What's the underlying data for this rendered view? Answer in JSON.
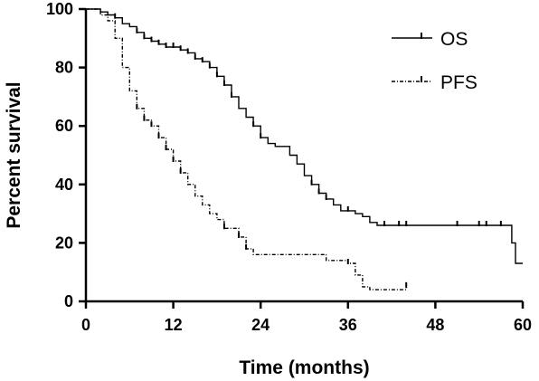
{
  "chart_data": {
    "type": "line",
    "xlabel": "Time (months)",
    "ylabel": "Percent survival",
    "xlim": [
      0,
      60
    ],
    "ylim": [
      0,
      100
    ],
    "xticks": [
      0,
      12,
      24,
      36,
      48,
      60
    ],
    "yticks": [
      0,
      20,
      40,
      60,
      80,
      100
    ],
    "grid": false,
    "legend_position": "top-right",
    "series": [
      {
        "name": "OS",
        "step": true,
        "line_style": "solid",
        "color": "#000000",
        "points": [
          [
            0,
            100
          ],
          [
            1,
            100
          ],
          [
            2,
            99
          ],
          [
            3,
            98
          ],
          [
            4,
            97
          ],
          [
            5,
            95
          ],
          [
            6,
            94
          ],
          [
            7,
            92
          ],
          [
            8,
            90
          ],
          [
            9,
            89
          ],
          [
            10,
            88
          ],
          [
            11,
            87
          ],
          [
            12,
            87
          ],
          [
            13,
            86
          ],
          [
            14,
            85
          ],
          [
            15,
            83
          ],
          [
            16,
            82
          ],
          [
            17,
            80
          ],
          [
            18,
            77
          ],
          [
            19,
            74
          ],
          [
            20,
            70
          ],
          [
            21,
            66
          ],
          [
            22,
            63
          ],
          [
            23,
            60
          ],
          [
            24,
            56
          ],
          [
            25,
            54
          ],
          [
            26,
            53
          ],
          [
            27,
            53
          ],
          [
            28,
            50
          ],
          [
            29,
            47
          ],
          [
            30,
            43
          ],
          [
            31,
            40
          ],
          [
            32,
            37
          ],
          [
            33,
            35
          ],
          [
            34,
            33
          ],
          [
            35,
            31
          ],
          [
            36,
            31
          ],
          [
            37,
            30
          ],
          [
            38,
            29
          ],
          [
            39,
            27
          ],
          [
            40,
            26
          ],
          [
            58,
            26
          ],
          [
            58.5,
            20
          ],
          [
            59,
            13
          ],
          [
            60,
            13
          ]
        ],
        "censor_marks": [
          [
            4,
            97
          ],
          [
            7,
            92
          ],
          [
            8,
            90
          ],
          [
            9,
            89
          ],
          [
            10,
            88
          ],
          [
            11,
            87
          ],
          [
            12,
            87
          ],
          [
            13,
            86
          ],
          [
            14,
            85
          ],
          [
            15,
            83
          ],
          [
            16,
            82
          ],
          [
            17,
            80
          ],
          [
            18,
            77
          ],
          [
            19,
            74
          ],
          [
            20,
            70
          ],
          [
            23,
            60
          ],
          [
            24,
            56
          ],
          [
            31,
            40
          ],
          [
            32,
            37
          ],
          [
            33,
            35
          ],
          [
            36,
            31
          ],
          [
            41,
            26
          ],
          [
            43,
            26
          ],
          [
            44,
            26
          ],
          [
            51,
            26
          ],
          [
            54,
            26
          ],
          [
            55,
            26
          ],
          [
            57,
            26
          ]
        ]
      },
      {
        "name": "PFS",
        "step": true,
        "line_style": "dash-dot",
        "color": "#000000",
        "points": [
          [
            0,
            100
          ],
          [
            1,
            100
          ],
          [
            2,
            98
          ],
          [
            3,
            96
          ],
          [
            4,
            90
          ],
          [
            5,
            80
          ],
          [
            6,
            72
          ],
          [
            7,
            66
          ],
          [
            8,
            62
          ],
          [
            9,
            60
          ],
          [
            10,
            56
          ],
          [
            11,
            52
          ],
          [
            12,
            48
          ],
          [
            13,
            44
          ],
          [
            14,
            40
          ],
          [
            15,
            36
          ],
          [
            16,
            33
          ],
          [
            17,
            30
          ],
          [
            18,
            28
          ],
          [
            19,
            25
          ],
          [
            20,
            25
          ],
          [
            21,
            22
          ],
          [
            22,
            18
          ],
          [
            23,
            16
          ],
          [
            27,
            16
          ],
          [
            32,
            16
          ],
          [
            33,
            14
          ],
          [
            36,
            13
          ],
          [
            37,
            9
          ],
          [
            38,
            5
          ],
          [
            39,
            4
          ],
          [
            43,
            4
          ],
          [
            44,
            5
          ]
        ],
        "censor_marks": [
          [
            7,
            66
          ],
          [
            8,
            62
          ],
          [
            9,
            60
          ],
          [
            10,
            56
          ],
          [
            11,
            52
          ],
          [
            12,
            48
          ],
          [
            13,
            44
          ],
          [
            19,
            25
          ],
          [
            21,
            22
          ],
          [
            22,
            18
          ],
          [
            36,
            13
          ],
          [
            44,
            5
          ]
        ]
      }
    ]
  }
}
